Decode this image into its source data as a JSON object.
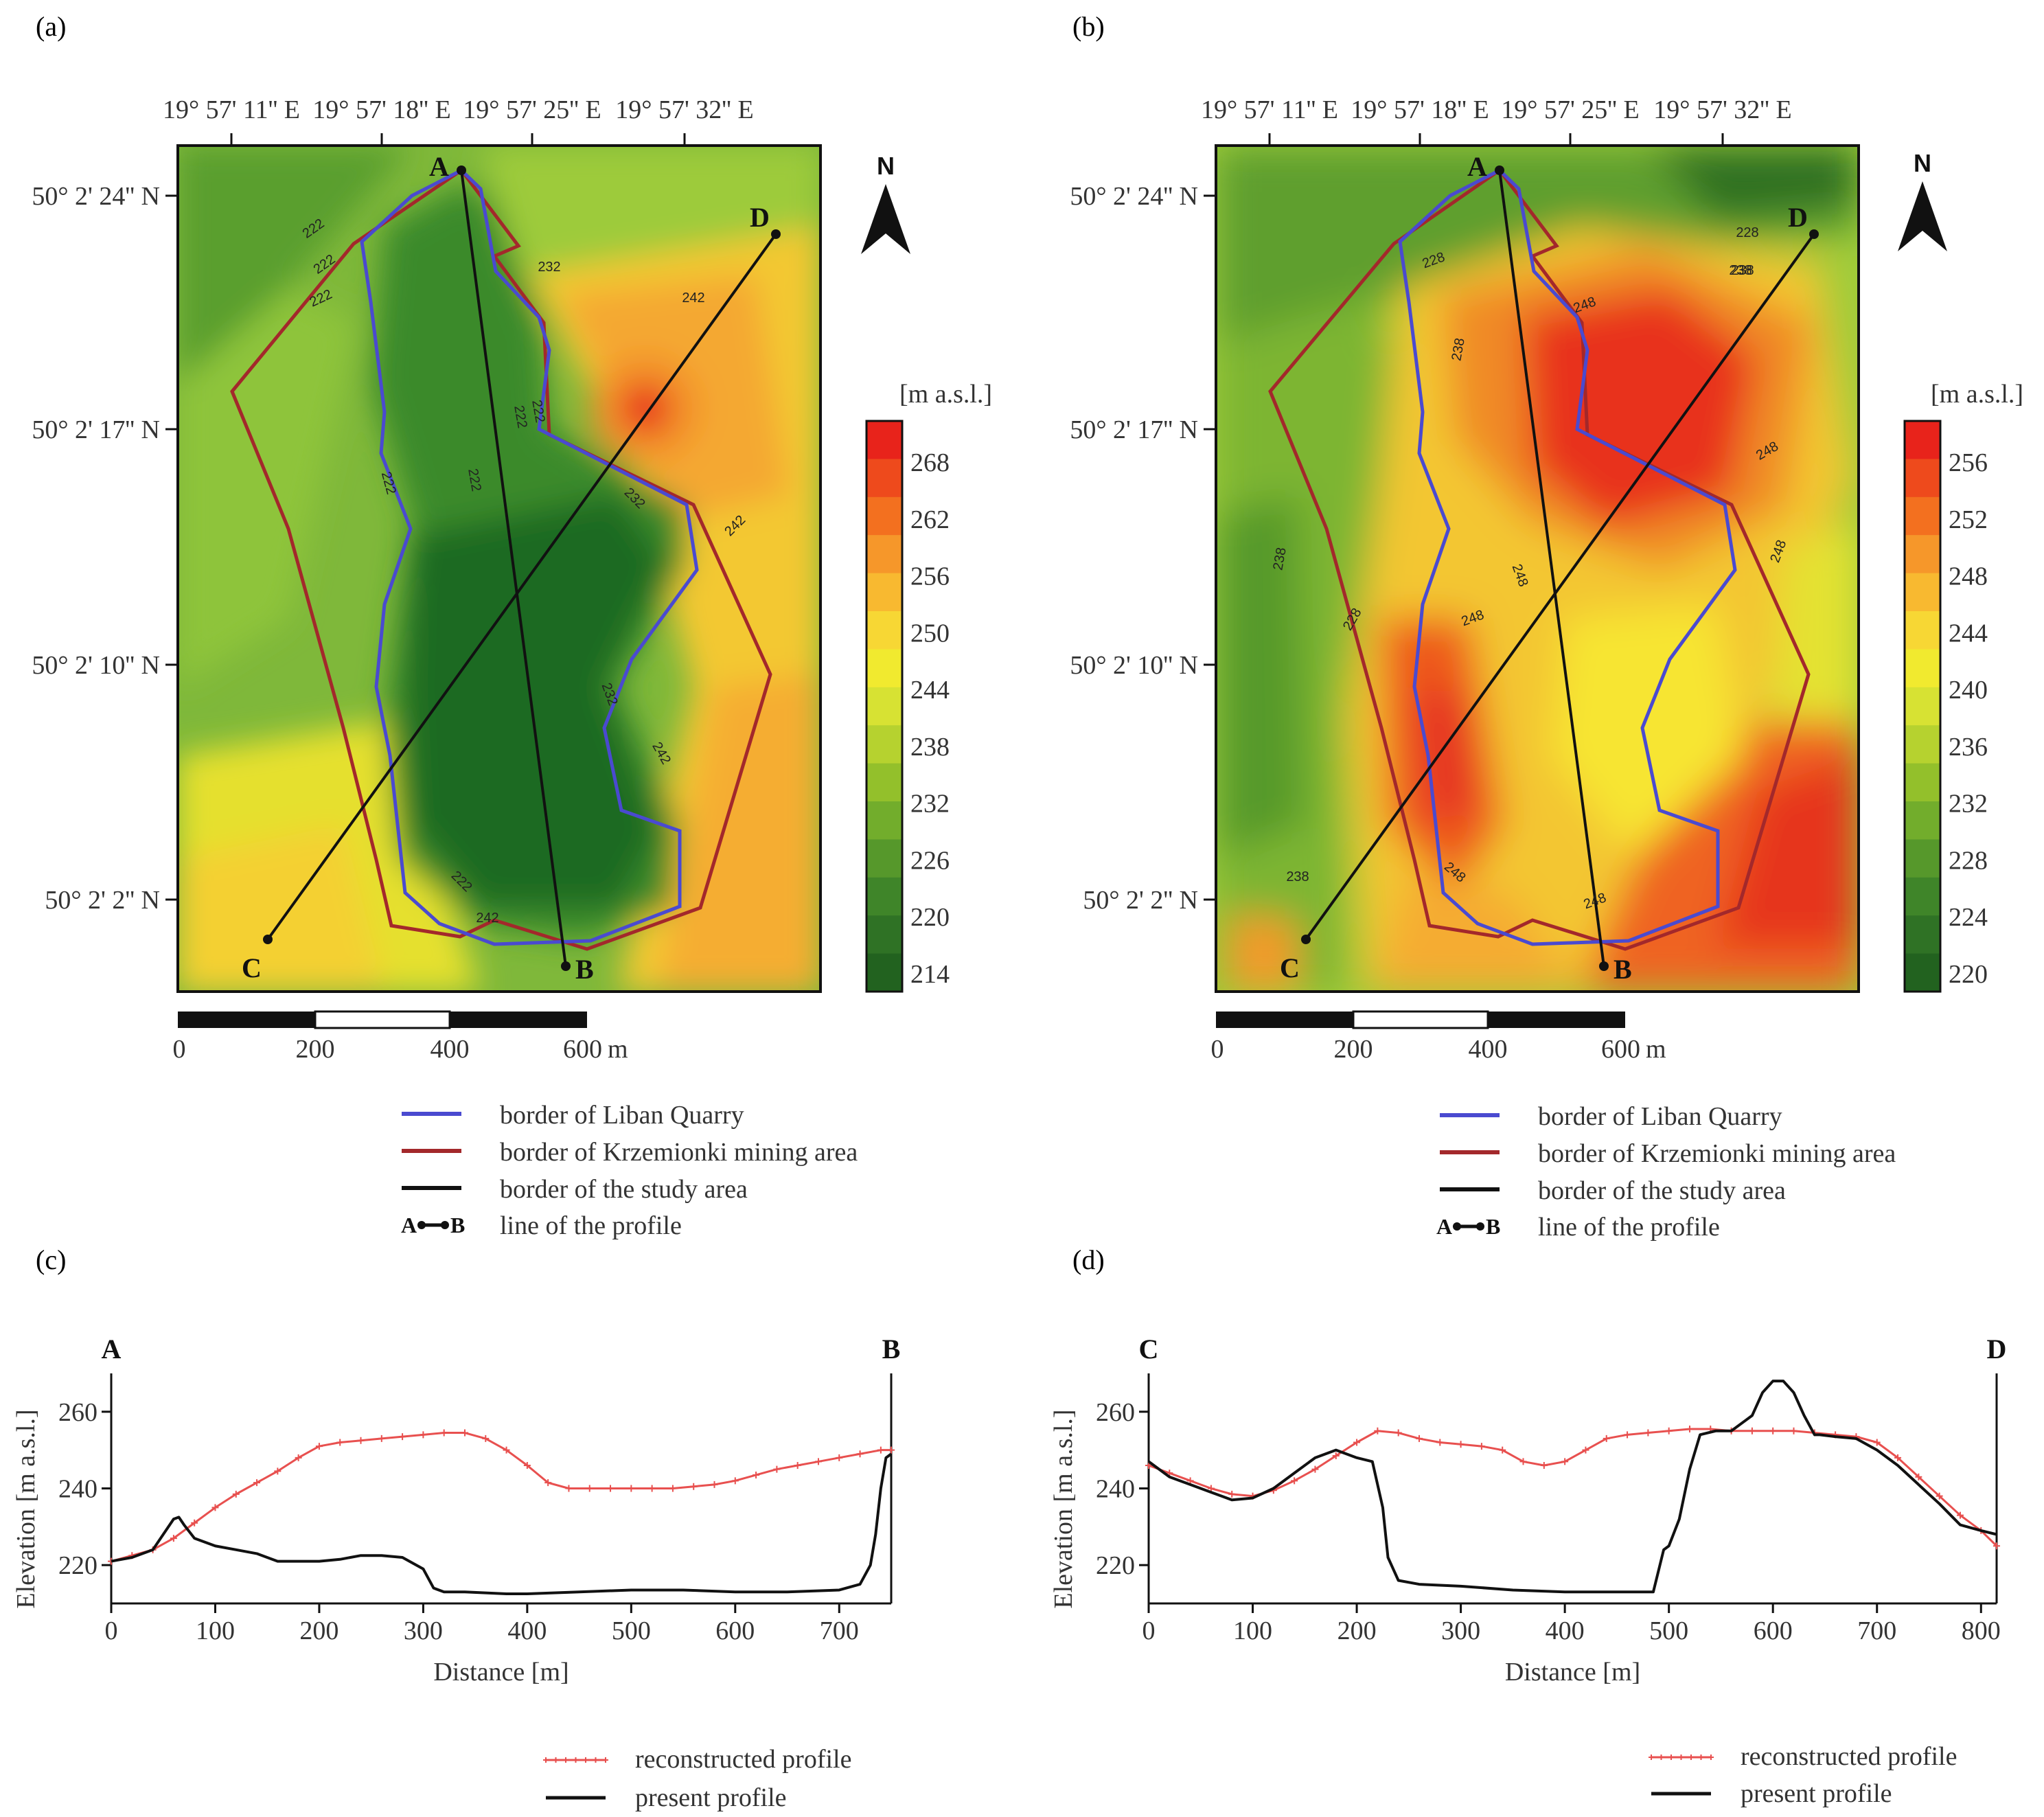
{
  "panels": {
    "a": "(a)",
    "b": "(b)",
    "c": "(c)",
    "d": "(d)"
  },
  "maps": [
    {
      "id": "a",
      "longitude_labels": [
        "19° 57' 11'' E",
        "19° 57' 18'' E",
        "19° 57' 25'' E",
        "19° 57' 32'' E"
      ],
      "latitude_labels": [
        "50° 2' 24'' N",
        "50° 2' 17'' N",
        "50° 2' 10'' N",
        "50° 2' 2'' N"
      ],
      "colorbar_title": "[m a.s.l.]",
      "colorbar_ticks": [
        "268",
        "262",
        "256",
        "250",
        "244",
        "238",
        "232",
        "226",
        "220",
        "214"
      ],
      "colorbar_colors": [
        "#e8231b",
        "#ee4a1c",
        "#f3701f",
        "#f6972a",
        "#f8b930",
        "#f7d734",
        "#f1ea2f",
        "#d7e233",
        "#b6d22f",
        "#93c02b",
        "#72ad2c",
        "#56982b",
        "#3f8529",
        "#2f7225",
        "#22621f"
      ],
      "contour_labels": [
        "222",
        "222",
        "222",
        "232",
        "242",
        "222",
        "222",
        "222",
        "222",
        "232",
        "242",
        "232",
        "242",
        "222",
        "242"
      ],
      "north": "N",
      "points": {
        "a": "A",
        "b": "B",
        "c": "C",
        "d": "D"
      },
      "scale_ticks": [
        "0",
        "200",
        "400",
        "600"
      ],
      "scale_unit": "m"
    },
    {
      "id": "b",
      "longitude_labels": [
        "19° 57' 11'' E",
        "19° 57' 18'' E",
        "19° 57' 25'' E",
        "19° 57' 32'' E"
      ],
      "latitude_labels": [
        "50° 2' 24'' N",
        "50° 2' 17'' N",
        "50° 2' 10'' N",
        "50° 2' 2'' N"
      ],
      "colorbar_title": "[m a.s.l.]",
      "colorbar_ticks": [
        "256",
        "252",
        "248",
        "244",
        "240",
        "236",
        "232",
        "228",
        "224",
        "220"
      ],
      "colorbar_colors": [
        "#e8231b",
        "#ee4a1c",
        "#f3701f",
        "#f6972a",
        "#f8b930",
        "#f7d734",
        "#f1ea2f",
        "#d7e233",
        "#b6d22f",
        "#93c02b",
        "#72ad2c",
        "#56982b",
        "#3f8529",
        "#2f7225",
        "#22621f"
      ],
      "contour_labels": [
        "228",
        "238",
        "228",
        "238",
        "248",
        "248",
        "238",
        "228",
        "248",
        "248",
        "248",
        "238",
        "248",
        "248",
        "238"
      ],
      "north": "N",
      "points": {
        "a": "A",
        "b": "B",
        "c": "C",
        "d": "D"
      },
      "scale_ticks": [
        "0",
        "200",
        "400",
        "600"
      ],
      "scale_unit": "m"
    }
  ],
  "map_legend": {
    "liban": "border of Liban Quarry",
    "krzemionki": "border of Krzemionki mining area",
    "study": "border of the study area",
    "profile": "line of the profile",
    "profile_symbol_a": "A",
    "profile_symbol_b": "B"
  },
  "profile_legend": {
    "reconstructed": "reconstructed profile",
    "present": "present profile"
  },
  "colors": {
    "reconstructed": "#e8504f",
    "present": "#111111",
    "liban": "#4a4ad0",
    "krzemionki": "#a3282b",
    "study": "#111111"
  },
  "chart_data": [
    {
      "type": "line",
      "panel": "c",
      "title": "",
      "start_label": "A",
      "end_label": "B",
      "xlabel": "Distance [m]",
      "ylabel": "Elevation [m a.s.l.]",
      "xlim": [
        0,
        750
      ],
      "ylim": [
        210,
        270
      ],
      "xticks": [
        0,
        100,
        200,
        300,
        400,
        500,
        600,
        700
      ],
      "yticks": [
        220,
        240,
        260
      ],
      "series": [
        {
          "name": "reconstructed profile",
          "x": [
            0,
            20,
            40,
            60,
            80,
            100,
            120,
            140,
            160,
            180,
            200,
            220,
            240,
            260,
            280,
            300,
            320,
            340,
            360,
            380,
            400,
            420,
            440,
            460,
            480,
            500,
            520,
            540,
            560,
            580,
            600,
            620,
            640,
            660,
            680,
            700,
            720,
            740,
            750
          ],
          "y": [
            221,
            222.5,
            224,
            227,
            231,
            235,
            238.5,
            241.5,
            244.5,
            248,
            251,
            252,
            252.5,
            253,
            253.5,
            254,
            254.5,
            254.5,
            253,
            250,
            246,
            241.5,
            240,
            240,
            240,
            240,
            240,
            240,
            240.5,
            241,
            242,
            243.5,
            245,
            246,
            247,
            248,
            249,
            250,
            250
          ]
        },
        {
          "name": "present profile",
          "x": [
            0,
            20,
            40,
            50,
            60,
            65,
            70,
            80,
            100,
            120,
            140,
            160,
            180,
            200,
            220,
            240,
            260,
            280,
            300,
            310,
            320,
            340,
            380,
            400,
            450,
            500,
            550,
            600,
            650,
            700,
            720,
            730,
            735,
            740,
            745,
            750
          ],
          "y": [
            221,
            222,
            224,
            228,
            232,
            232.5,
            230.5,
            227,
            225,
            224,
            223,
            221,
            221,
            221,
            221.5,
            222.5,
            222.5,
            222,
            219,
            214,
            213,
            213,
            212.5,
            212.5,
            213,
            213.5,
            213.5,
            213,
            213,
            213.5,
            215,
            220,
            228,
            240,
            248,
            249
          ]
        }
      ]
    },
    {
      "type": "line",
      "panel": "d",
      "title": "",
      "start_label": "C",
      "end_label": "D",
      "xlabel": "Distance [m]",
      "ylabel": "Elevation [m a.s.l.]",
      "xlim": [
        0,
        815
      ],
      "ylim": [
        210,
        270
      ],
      "xticks": [
        0,
        100,
        200,
        300,
        400,
        500,
        600,
        700,
        800
      ],
      "yticks": [
        220,
        240,
        260
      ],
      "series": [
        {
          "name": "reconstructed profile",
          "x": [
            0,
            20,
            40,
            60,
            80,
            100,
            120,
            140,
            160,
            180,
            200,
            220,
            240,
            260,
            280,
            300,
            320,
            340,
            360,
            380,
            400,
            420,
            440,
            460,
            480,
            500,
            520,
            540,
            560,
            580,
            600,
            620,
            640,
            660,
            680,
            700,
            720,
            740,
            760,
            780,
            800,
            815
          ],
          "y": [
            246,
            244,
            242,
            240,
            238.5,
            238,
            239.5,
            242,
            245,
            248.5,
            252,
            255,
            254.5,
            253,
            252,
            251.5,
            251,
            250,
            247,
            246,
            247,
            250,
            253,
            254,
            254.5,
            255,
            255.5,
            255.5,
            255,
            255,
            255,
            255,
            254.5,
            254,
            253.5,
            252,
            248,
            243,
            238,
            233,
            229,
            225
          ]
        },
        {
          "name": "present profile",
          "x": [
            0,
            20,
            40,
            60,
            80,
            100,
            120,
            140,
            160,
            180,
            200,
            215,
            225,
            230,
            240,
            260,
            300,
            350,
            400,
            450,
            485,
            495,
            500,
            510,
            520,
            530,
            545,
            560,
            580,
            590,
            600,
            610,
            620,
            630,
            640,
            645,
            660,
            680,
            700,
            720,
            740,
            760,
            780,
            800,
            815
          ],
          "y": [
            247,
            243,
            241,
            239,
            237,
            237.5,
            240,
            244,
            248,
            250,
            248,
            247,
            235,
            222,
            216,
            215,
            214.5,
            213.5,
            213,
            213,
            213,
            224,
            225,
            232,
            245,
            254,
            255,
            255,
            259,
            265,
            268,
            268,
            265,
            259,
            254,
            254,
            253.5,
            253,
            250,
            246,
            241,
            236,
            230.5,
            229,
            228
          ]
        }
      ]
    }
  ]
}
